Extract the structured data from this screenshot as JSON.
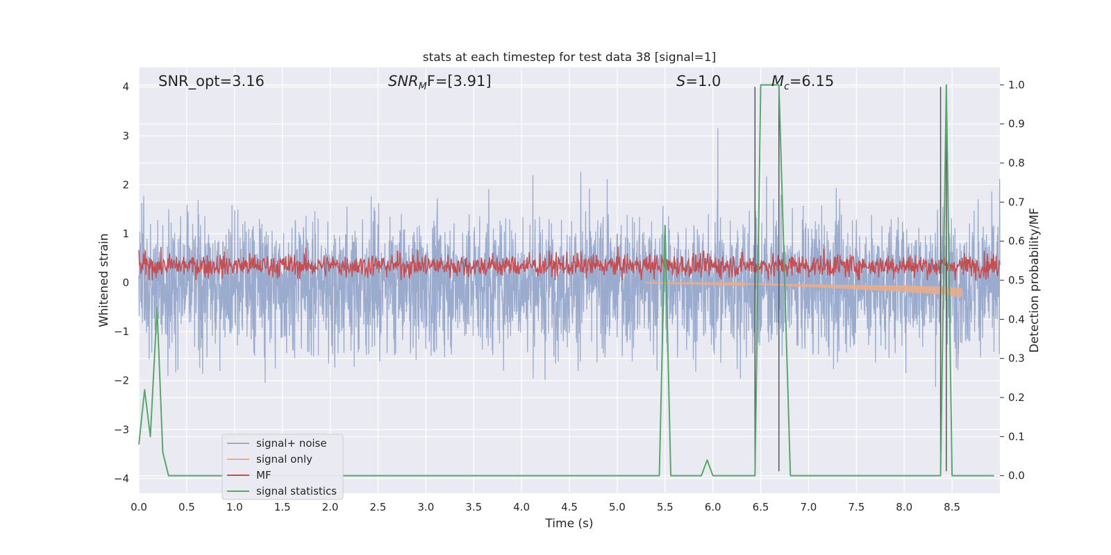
{
  "chart_data": {
    "type": "line",
    "title": "stats at each timestep for test data 38 [signal=1]",
    "xlabel": "Time (s)",
    "ylabel": "Whitened strain",
    "y2label": "Detection probability/MF",
    "xlim": [
      0.0,
      9.0
    ],
    "ylim": [
      -4.3,
      4.4
    ],
    "y2lim": [
      -0.045,
      1.045
    ],
    "xticks": [
      "0.0",
      "0.5",
      "1.0",
      "1.5",
      "2.0",
      "2.5",
      "3.0",
      "3.5",
      "4.0",
      "4.5",
      "5.0",
      "5.5",
      "6.0",
      "6.5",
      "7.0",
      "7.5",
      "8.0",
      "8.5"
    ],
    "yticks": [
      "4",
      "3",
      "2",
      "1",
      "0",
      "−1",
      "−2",
      "−3",
      "−4"
    ],
    "y2ticks": [
      "1.0",
      "0.9",
      "0.8",
      "0.7",
      "0.6",
      "0.5",
      "0.4",
      "0.3",
      "0.2",
      "0.1",
      "0.0"
    ],
    "grid": true,
    "legend_position": "lower-left",
    "annotations": {
      "snr_opt": "SNR_opt=3.16",
      "snr_mf_base": "SNR",
      "snr_mf_sub": "M",
      "snr_mf_rest": "F=[3.91]",
      "s_base": "S",
      "s_rest": "=1.0",
      "mc_base": "M",
      "mc_sub": "c",
      "mc_rest": "=6.15"
    },
    "series": [
      {
        "name": "signal+ noise",
        "color": "#9aabce",
        "style": "noise band about 0, typical envelope ±1.6, spikes to ±3"
      },
      {
        "name": "signal only",
        "color": "#e7ad8e",
        "style": "chirp drifting down toward end",
        "points": [
          [
            5.3,
            0.0
          ],
          [
            6.0,
            -0.02
          ],
          [
            6.5,
            -0.03
          ],
          [
            7.0,
            -0.06
          ],
          [
            7.5,
            -0.09
          ],
          [
            8.0,
            -0.12
          ],
          [
            8.4,
            -0.16
          ],
          [
            8.6,
            -0.2
          ]
        ]
      },
      {
        "name": "MF",
        "color": "#c44e52",
        "style": "noisy band around 0.35, range 0.05–0.85"
      },
      {
        "name": "signal statistics",
        "color": "#55a868",
        "axis": "right",
        "points": [
          [
            0.0,
            0.08
          ],
          [
            0.06,
            0.22
          ],
          [
            0.12,
            0.1
          ],
          [
            0.19,
            0.43
          ],
          [
            0.25,
            0.06
          ],
          [
            0.31,
            0.0
          ],
          [
            5.44,
            0.0
          ],
          [
            5.5,
            0.64
          ],
          [
            5.56,
            0.0
          ],
          [
            5.88,
            0.0
          ],
          [
            5.94,
            0.04
          ],
          [
            6.0,
            0.0
          ],
          [
            6.44,
            0.0
          ],
          [
            6.5,
            1.0
          ],
          [
            6.69,
            1.0
          ],
          [
            6.81,
            0.0
          ],
          [
            8.38,
            0.0
          ],
          [
            8.44,
            1.0
          ],
          [
            8.5,
            0.0
          ],
          [
            8.88,
            0.0
          ],
          [
            8.94,
            0.0
          ]
        ]
      }
    ],
    "markers": {
      "color": "#555555",
      "lines": [
        [
          6.44,
          4.0,
          -3.85
        ],
        [
          6.69,
          4.0,
          -3.85
        ],
        [
          8.38,
          4.0,
          -3.85
        ],
        [
          8.44,
          4.0,
          -3.85
        ]
      ]
    }
  }
}
